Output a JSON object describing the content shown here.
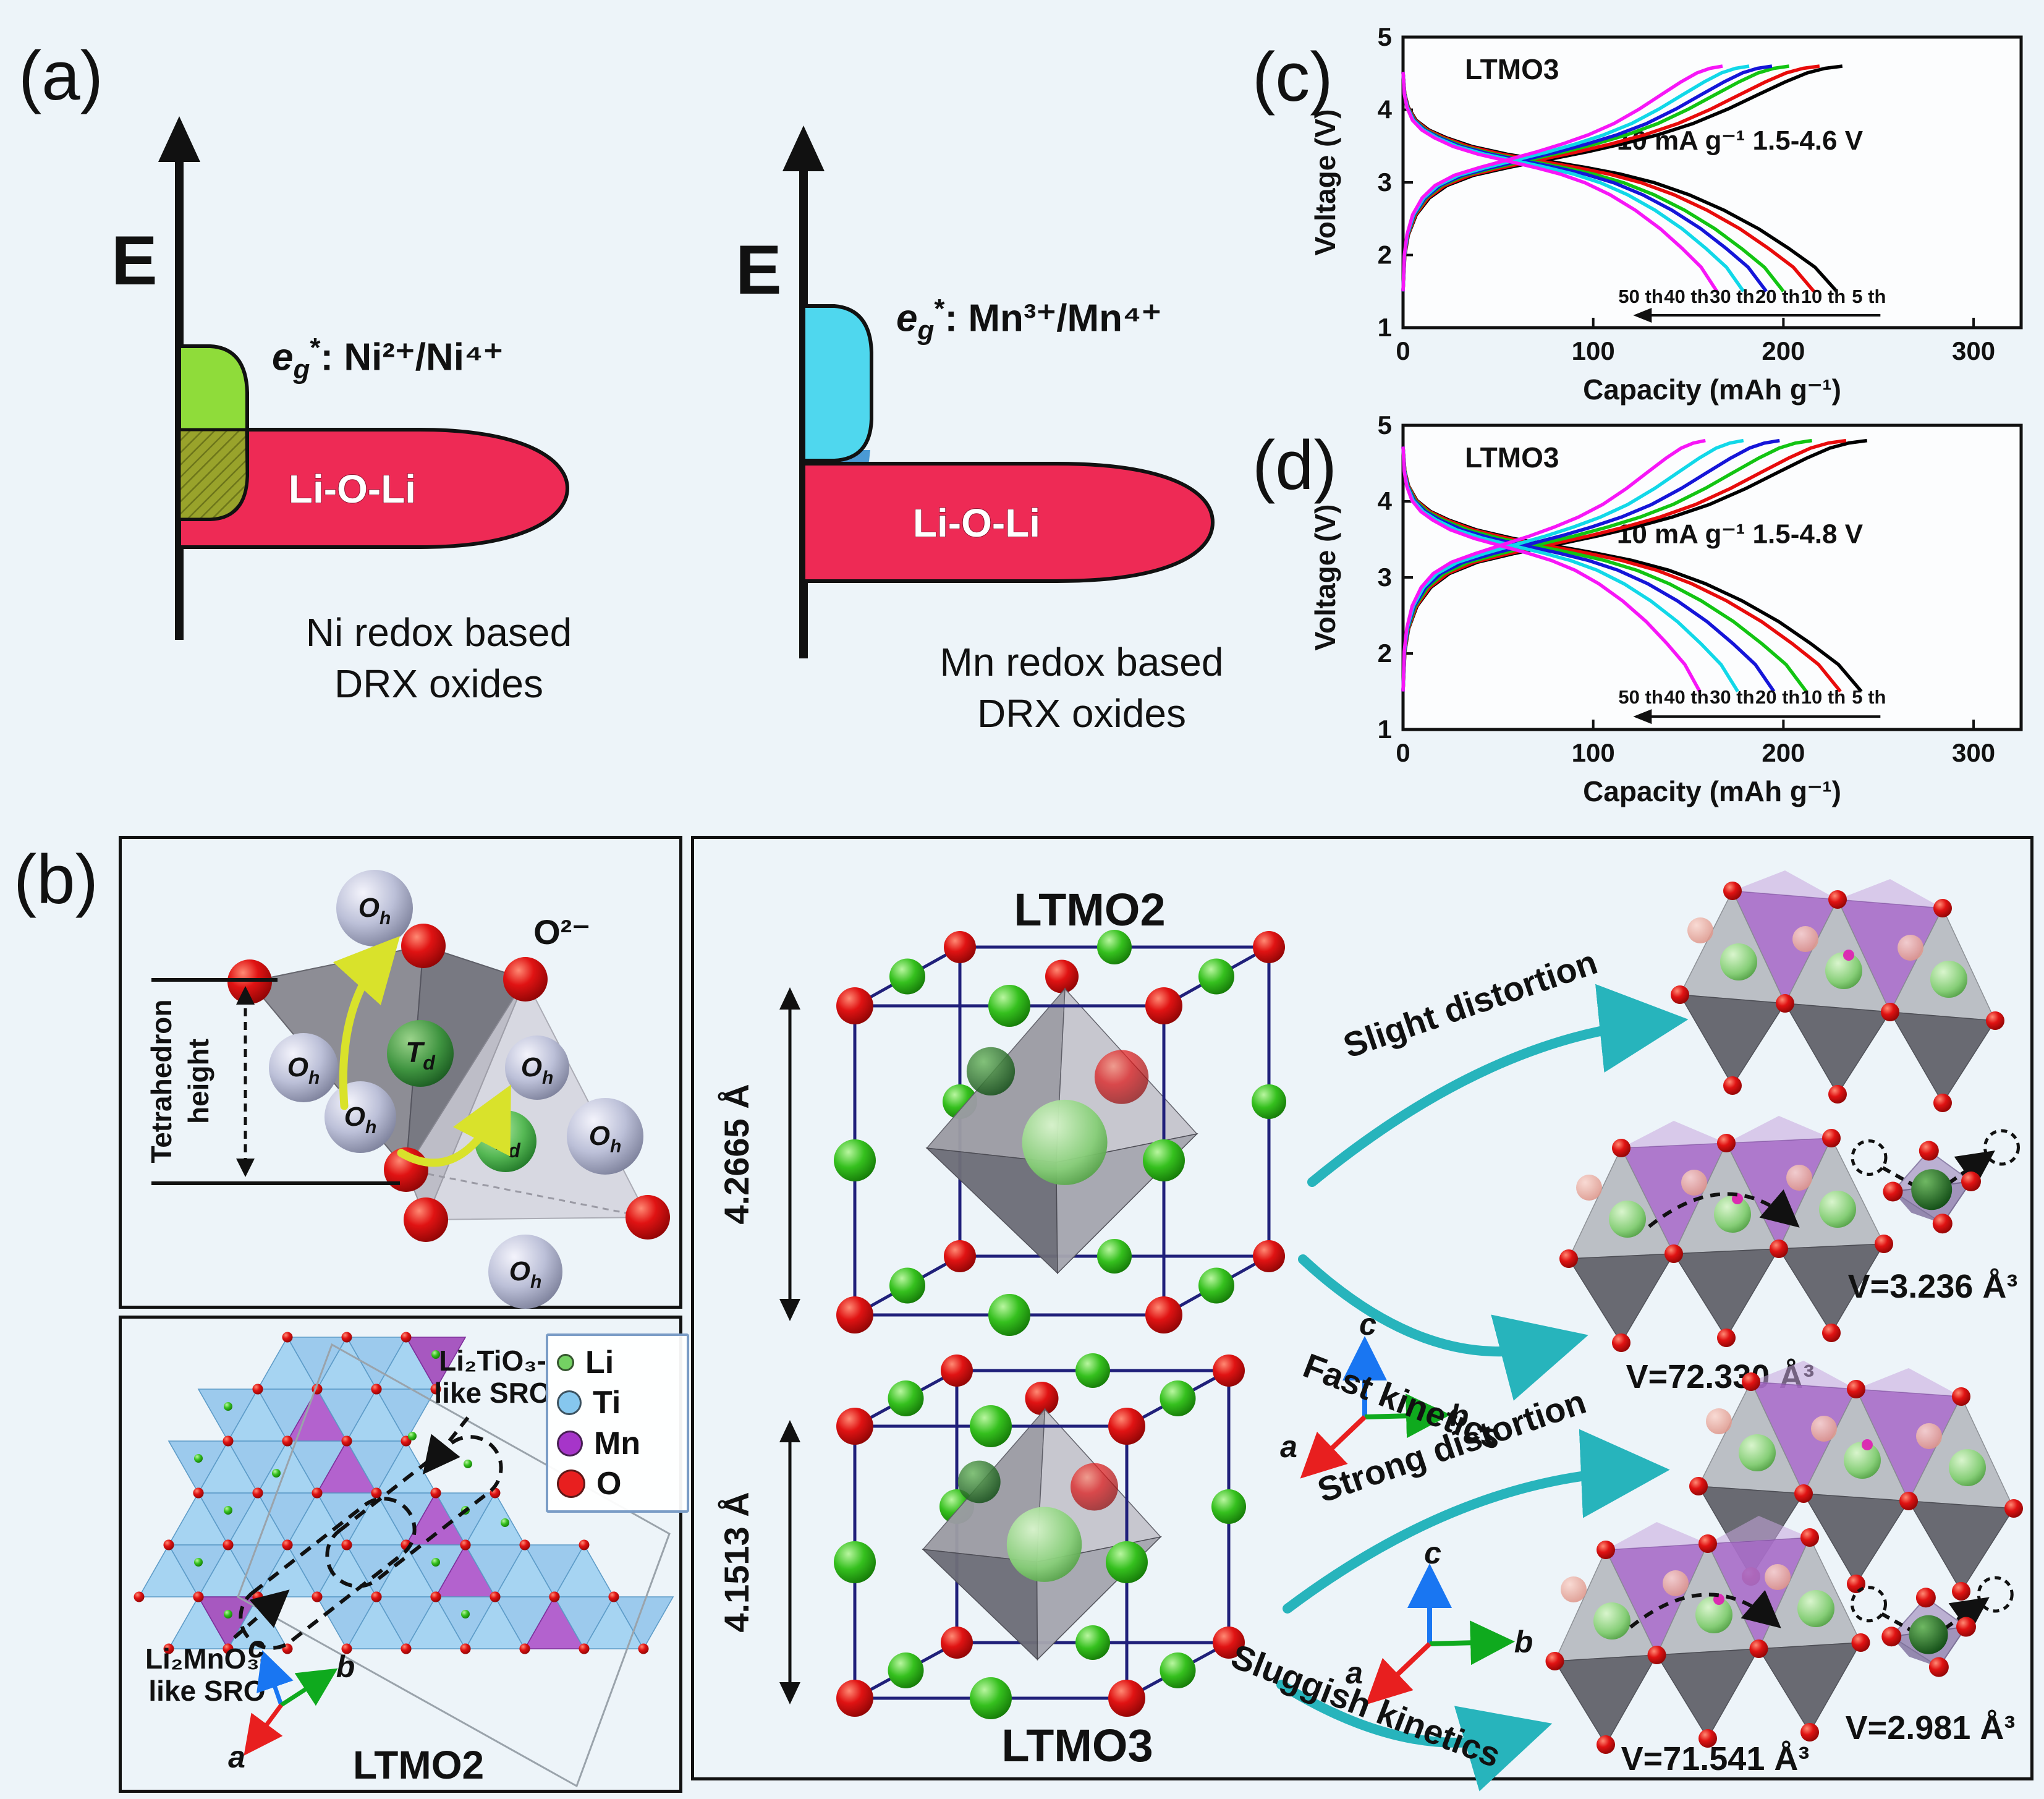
{
  "page": {
    "bg": "#edf4f9"
  },
  "panel_a": {
    "label": "(a)",
    "left": {
      "axis_label": "E",
      "eg": {
        "e": "e",
        "sub": "g",
        "sup": "*",
        "rest": ": Ni²⁺/Ni⁴⁺"
      },
      "band_label": "Li-O-Li",
      "caption1": "Ni redox based",
      "caption2": "DRX oxides",
      "eg_band_color": "#8fdc3a",
      "overlap_color": "#99a32b",
      "lioli_band_color": "#ee2a55"
    },
    "right": {
      "axis_label": "E",
      "eg": {
        "e": "e",
        "sub": "g",
        "sup": "*",
        "rest": ": Mn³⁺/Mn⁴⁺"
      },
      "band_label": "Li-O-Li",
      "caption1": "Mn redox based",
      "caption2": "DRX oxides",
      "eg_band_color": "#4fd7ee",
      "overlap_color": "#4a9ad4",
      "lioli_band_color": "#ee2a55"
    }
  },
  "panel_b": {
    "label": "(b)",
    "tetra_box": {
      "height_label_line1": "Tetrahedron",
      "height_label_line2": "height",
      "o2_label": "O²⁻",
      "oh_main": "O",
      "oh_sub": "h",
      "td_main": "T",
      "td_sub": "d"
    },
    "sro_box": {
      "tio3_line1": "Li₂TiO₃-",
      "tio3_line2": "like SRO",
      "mno3_line1": "Li₂MnO₃-",
      "mno3_line2": "like SRO",
      "legend": [
        {
          "label": "Li",
          "color": "#74d163"
        },
        {
          "label": "Ti",
          "color": "#86c7ee"
        },
        {
          "label": "Mn",
          "color": "#a635c9"
        },
        {
          "label": "O",
          "color": "#e81f1f"
        }
      ],
      "axis_a": "a",
      "axis_b": "b",
      "axis_c": "c",
      "title": "LTMO2"
    },
    "main_box": {
      "ltmo2_title": "LTMO2",
      "ltmo2_lattice": "4.2665 Å",
      "ltmo3_title": "LTMO3",
      "ltmo3_lattice": "4.1513 Å",
      "axis_a": "a",
      "axis_b": "b",
      "axis_c": "c",
      "slight_label": "Slight distortion",
      "fast_label": "Fast kinetics",
      "strong_label": "Strong distortion",
      "sluggish_label": "Sluggish kinetics",
      "v_fast_slab": "V=72.330 Å³",
      "v_fast_tet": "V=3.236 Å³",
      "v_sluggish_slab": "V=71.541 Å³",
      "v_sluggish_tet": "V=2.981 Å³",
      "arrow_color": "#27b4bc"
    }
  },
  "panel_c": {
    "label": "(c)"
  },
  "panel_d": {
    "label": "(d)"
  },
  "chart_data": [
    {
      "id": "c",
      "type": "line",
      "title": "LTMO3",
      "title_color": "#2727d8",
      "annotation": "10 mA g⁻¹  1.5-4.6 V",
      "xlabel": "Capacity (mAh g⁻¹)",
      "ylabel": "Voltage (V)",
      "xlim": [
        0,
        300
      ],
      "ylim": [
        1,
        5
      ],
      "xticks": [
        0,
        100,
        200,
        300
      ],
      "yticks": [
        5,
        4,
        3,
        2,
        1
      ],
      "vmax": 4.6,
      "vmin": 1.5,
      "legend_position": "in-plot bottom, cycle numbers with left arrow",
      "cycle_labels": [
        "50 th",
        "40 th",
        "30 th",
        "20 th",
        "10 th",
        "5 th"
      ],
      "series": [
        {
          "name": "5 th",
          "color": "#000000",
          "charge_capacity": 231,
          "discharge_capacity": 228
        },
        {
          "name": "10 th",
          "color": "#e80b0b",
          "charge_capacity": 219,
          "discharge_capacity": 216
        },
        {
          "name": "20 th",
          "color": "#12c412",
          "charge_capacity": 203,
          "discharge_capacity": 200
        },
        {
          "name": "30 th",
          "color": "#1515d8",
          "charge_capacity": 194,
          "discharge_capacity": 191
        },
        {
          "name": "40 th",
          "color": "#11d8e8",
          "charge_capacity": 182,
          "discharge_capacity": 179
        },
        {
          "name": "50 th",
          "color": "#f716f7",
          "charge_capacity": 168,
          "discharge_capacity": 165
        }
      ]
    },
    {
      "id": "d",
      "type": "line",
      "title": "LTMO3",
      "title_color": "#2727d8",
      "annotation": "10 mA g⁻¹  1.5-4.8 V",
      "xlabel": "Capacity (mAh g⁻¹)",
      "ylabel": "Voltage (V)",
      "xlim": [
        0,
        300
      ],
      "ylim": [
        1,
        5
      ],
      "xticks": [
        0,
        100,
        200,
        300
      ],
      "yticks": [
        5,
        4,
        3,
        2,
        1
      ],
      "vmax": 4.8,
      "vmin": 1.5,
      "legend_position": "in-plot bottom, cycle numbers with left arrow",
      "cycle_labels": [
        "50 th",
        "40 th",
        "30 th",
        "20 th",
        "10 th",
        "5 th"
      ],
      "series": [
        {
          "name": "5 th",
          "color": "#000000",
          "charge_capacity": 244,
          "discharge_capacity": 241
        },
        {
          "name": "10 th",
          "color": "#e80b0b",
          "charge_capacity": 233,
          "discharge_capacity": 230
        },
        {
          "name": "20 th",
          "color": "#12c412",
          "charge_capacity": 215,
          "discharge_capacity": 212
        },
        {
          "name": "30 th",
          "color": "#1515d8",
          "charge_capacity": 198,
          "discharge_capacity": 195
        },
        {
          "name": "40 th",
          "color": "#11d8e8",
          "charge_capacity": 179,
          "discharge_capacity": 176
        },
        {
          "name": "50 th",
          "color": "#f716f7",
          "charge_capacity": 159,
          "discharge_capacity": 156
        }
      ]
    }
  ]
}
